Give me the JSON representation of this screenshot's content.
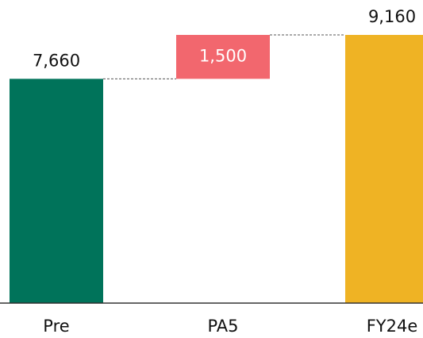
{
  "chart_data": {
    "type": "waterfall",
    "categories": [
      "Pre",
      "PA5",
      "FY24e"
    ],
    "values": [
      7660,
      1500,
      9160
    ],
    "value_labels": [
      "7,660",
      "1,500",
      "9,160"
    ],
    "measures": [
      "absolute",
      "relative",
      "total"
    ],
    "colors": [
      "#00735a",
      "#f2676e",
      "#efb324"
    ]
  }
}
